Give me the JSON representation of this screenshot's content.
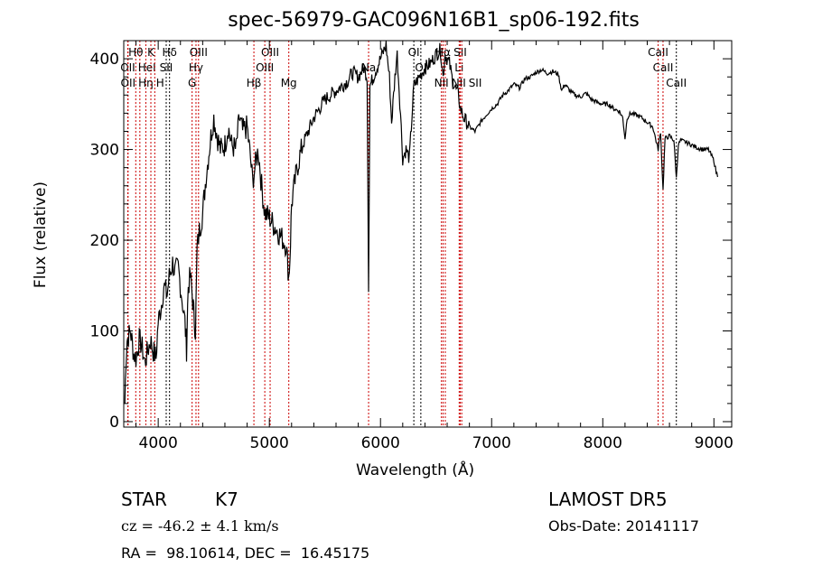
{
  "chart_data": {
    "type": "line",
    "title": "spec-56979-GAC096N16B1_sp06-192.fits",
    "xlabel": "Wavelength (Å)",
    "ylabel": "Flux (relative)",
    "xlim": [
      3690,
      9160
    ],
    "ylim": [
      -6,
      420
    ],
    "xticks": [
      4000,
      5000,
      6000,
      7000,
      8000,
      9000
    ],
    "xtick_labels": [
      "4000",
      "5000",
      "6000",
      "7000",
      "8000",
      "9000"
    ],
    "yticks": [
      0,
      100,
      200,
      300,
      400
    ],
    "ytick_labels": [
      "0",
      "100",
      "200",
      "300",
      "400"
    ],
    "grid": false,
    "series": [
      {
        "name": "spectrum",
        "color": "#000000",
        "points": [
          [
            3700,
            20
          ],
          [
            3710,
            70
          ],
          [
            3720,
            90
          ],
          [
            3750,
            100
          ],
          [
            3780,
            75
          ],
          [
            3800,
            70
          ],
          [
            3830,
            90
          ],
          [
            3850,
            85
          ],
          [
            3880,
            65
          ],
          [
            3900,
            75
          ],
          [
            3930,
            90
          ],
          [
            3950,
            80
          ],
          [
            3980,
            70
          ],
          [
            4000,
            110
          ],
          [
            4030,
            130
          ],
          [
            4050,
            150
          ],
          [
            4080,
            140
          ],
          [
            4100,
            160
          ],
          [
            4130,
            175
          ],
          [
            4150,
            165
          ],
          [
            4180,
            170
          ],
          [
            4200,
            150
          ],
          [
            4220,
            130
          ],
          [
            4240,
            110
          ],
          [
            4255,
            80
          ],
          [
            4270,
            150
          ],
          [
            4290,
            160
          ],
          [
            4305,
            140
          ],
          [
            4320,
            120
          ],
          [
            4335,
            100
          ],
          [
            4350,
            190
          ],
          [
            4370,
            210
          ],
          [
            4400,
            230
          ],
          [
            4430,
            270
          ],
          [
            4450,
            290
          ],
          [
            4480,
            320
          ],
          [
            4500,
            335
          ],
          [
            4530,
            315
          ],
          [
            4560,
            300
          ],
          [
            4600,
            305
          ],
          [
            4630,
            325
          ],
          [
            4660,
            305
          ],
          [
            4700,
            300
          ],
          [
            4730,
            335
          ],
          [
            4760,
            320
          ],
          [
            4800,
            325
          ],
          [
            4830,
            290
          ],
          [
            4850,
            265
          ],
          [
            4870,
            280
          ],
          [
            4900,
            300
          ],
          [
            4930,
            260
          ],
          [
            4960,
            230
          ],
          [
            5000,
            225
          ],
          [
            5050,
            215
          ],
          [
            5100,
            205
          ],
          [
            5150,
            195
          ],
          [
            5175,
            160
          ],
          [
            5185,
            180
          ],
          [
            5200,
            240
          ],
          [
            5250,
            280
          ],
          [
            5300,
            305
          ],
          [
            5350,
            320
          ],
          [
            5400,
            335
          ],
          [
            5450,
            345
          ],
          [
            5500,
            355
          ],
          [
            5550,
            360
          ],
          [
            5600,
            365
          ],
          [
            5650,
            370
          ],
          [
            5700,
            375
          ],
          [
            5750,
            385
          ],
          [
            5800,
            380
          ],
          [
            5850,
            390
          ],
          [
            5880,
            380
          ],
          [
            5893,
            150
          ],
          [
            5905,
            370
          ],
          [
            5950,
            385
          ],
          [
            6000,
            400
          ],
          [
            6050,
            415
          ],
          [
            6080,
            380
          ],
          [
            6100,
            330
          ],
          [
            6130,
            380
          ],
          [
            6150,
            405
          ],
          [
            6180,
            340
          ],
          [
            6200,
            290
          ],
          [
            6230,
            300
          ],
          [
            6260,
            290
          ],
          [
            6300,
            370
          ],
          [
            6350,
            380
          ],
          [
            6400,
            390
          ],
          [
            6450,
            395
          ],
          [
            6500,
            405
          ],
          [
            6540,
            410
          ],
          [
            6563,
            380
          ],
          [
            6580,
            405
          ],
          [
            6620,
            395
          ],
          [
            6650,
            375
          ],
          [
            6700,
            360
          ],
          [
            6720,
            345
          ],
          [
            6750,
            335
          ],
          [
            6800,
            325
          ],
          [
            6850,
            320
          ],
          [
            6900,
            330
          ],
          [
            6950,
            338
          ],
          [
            7000,
            345
          ],
          [
            7050,
            350
          ],
          [
            7100,
            360
          ],
          [
            7150,
            365
          ],
          [
            7200,
            372
          ],
          [
            7250,
            368
          ],
          [
            7300,
            378
          ],
          [
            7350,
            380
          ],
          [
            7400,
            385
          ],
          [
            7450,
            388
          ],
          [
            7500,
            384
          ],
          [
            7550,
            386
          ],
          [
            7600,
            383
          ],
          [
            7630,
            365
          ],
          [
            7660,
            372
          ],
          [
            7700,
            365
          ],
          [
            7750,
            360
          ],
          [
            7800,
            358
          ],
          [
            7850,
            362
          ],
          [
            7900,
            355
          ],
          [
            7950,
            352
          ],
          [
            8000,
            350
          ],
          [
            8050,
            350
          ],
          [
            8100,
            345
          ],
          [
            8150,
            342
          ],
          [
            8180,
            335
          ],
          [
            8200,
            312
          ],
          [
            8220,
            335
          ],
          [
            8250,
            340
          ],
          [
            8300,
            338
          ],
          [
            8350,
            335
          ],
          [
            8400,
            330
          ],
          [
            8450,
            325
          ],
          [
            8498,
            300
          ],
          [
            8520,
            320
          ],
          [
            8542,
            255
          ],
          [
            8560,
            312
          ],
          [
            8600,
            315
          ],
          [
            8640,
            310
          ],
          [
            8662,
            268
          ],
          [
            8680,
            305
          ],
          [
            8700,
            310
          ],
          [
            8750,
            308
          ],
          [
            8800,
            305
          ],
          [
            8850,
            302
          ],
          [
            8900,
            300
          ],
          [
            8950,
            300
          ],
          [
            9000,
            288
          ],
          [
            9020,
            275
          ],
          [
            9040,
            270
          ]
        ]
      }
    ],
    "lines": [
      {
        "label": "Hθ",
        "wave": 3798,
        "color": "#cc0000"
      },
      {
        "label": "OII",
        "wave": 3726,
        "color": "#cc0000"
      },
      {
        "label": "OII",
        "wave": 3729,
        "color": "#cc0000"
      },
      {
        "label": "Hη",
        "wave": 3835,
        "color": "#cc0000"
      },
      {
        "label": "HeI",
        "wave": 3889,
        "color": "#cc0000"
      },
      {
        "label": "K",
        "wave": 3934,
        "color": "#cc0000"
      },
      {
        "label": "H",
        "wave": 3969,
        "color": "#cc0000"
      },
      {
        "label": "SII",
        "wave": 4072,
        "color": "#000000"
      },
      {
        "label": "Hδ",
        "wave": 4102,
        "color": "#000000"
      },
      {
        "label": "G",
        "wave": 4305,
        "color": "#cc0000"
      },
      {
        "label": "Hγ",
        "wave": 4340,
        "color": "#cc0000"
      },
      {
        "label": "OIII",
        "wave": 4363,
        "color": "#cc0000"
      },
      {
        "label": "Hβ",
        "wave": 4861,
        "color": "#cc0000"
      },
      {
        "label": "OIII",
        "wave": 4959,
        "color": "#cc0000"
      },
      {
        "label": "OIII",
        "wave": 5007,
        "color": "#cc0000"
      },
      {
        "label": "Mg",
        "wave": 5175,
        "color": "#cc0000"
      },
      {
        "label": "Na",
        "wave": 5893,
        "color": "#cc0000"
      },
      {
        "label": "OI",
        "wave": 6300,
        "color": "#000000"
      },
      {
        "label": "OI",
        "wave": 6363,
        "color": "#000000"
      },
      {
        "label": "NII",
        "wave": 6548,
        "color": "#cc0000"
      },
      {
        "label": "Hα",
        "wave": 6563,
        "color": "#cc0000"
      },
      {
        "label": "NII",
        "wave": 6583,
        "color": "#cc0000"
      },
      {
        "label": "Li",
        "wave": 6708,
        "color": "#cc0000"
      },
      {
        "label": "SII",
        "wave": 6717,
        "color": "#cc0000"
      },
      {
        "label": "SII",
        "wave": 6731,
        "color": "#cc0000"
      },
      {
        "label": "CaII",
        "wave": 8498,
        "color": "#cc0000"
      },
      {
        "label": "CaII",
        "wave": 8542,
        "color": "#cc0000"
      },
      {
        "label": "CaII",
        "wave": 8662,
        "color": "#000000"
      }
    ]
  },
  "info": {
    "class": "STAR",
    "subclass": "K7",
    "cz": "cz = -46.2 ± 4.1 km/s",
    "coords": "RA =  98.10614, DEC =  16.45175",
    "survey": "LAMOST DR5",
    "obs_date": "Obs-Date: 20141117"
  }
}
